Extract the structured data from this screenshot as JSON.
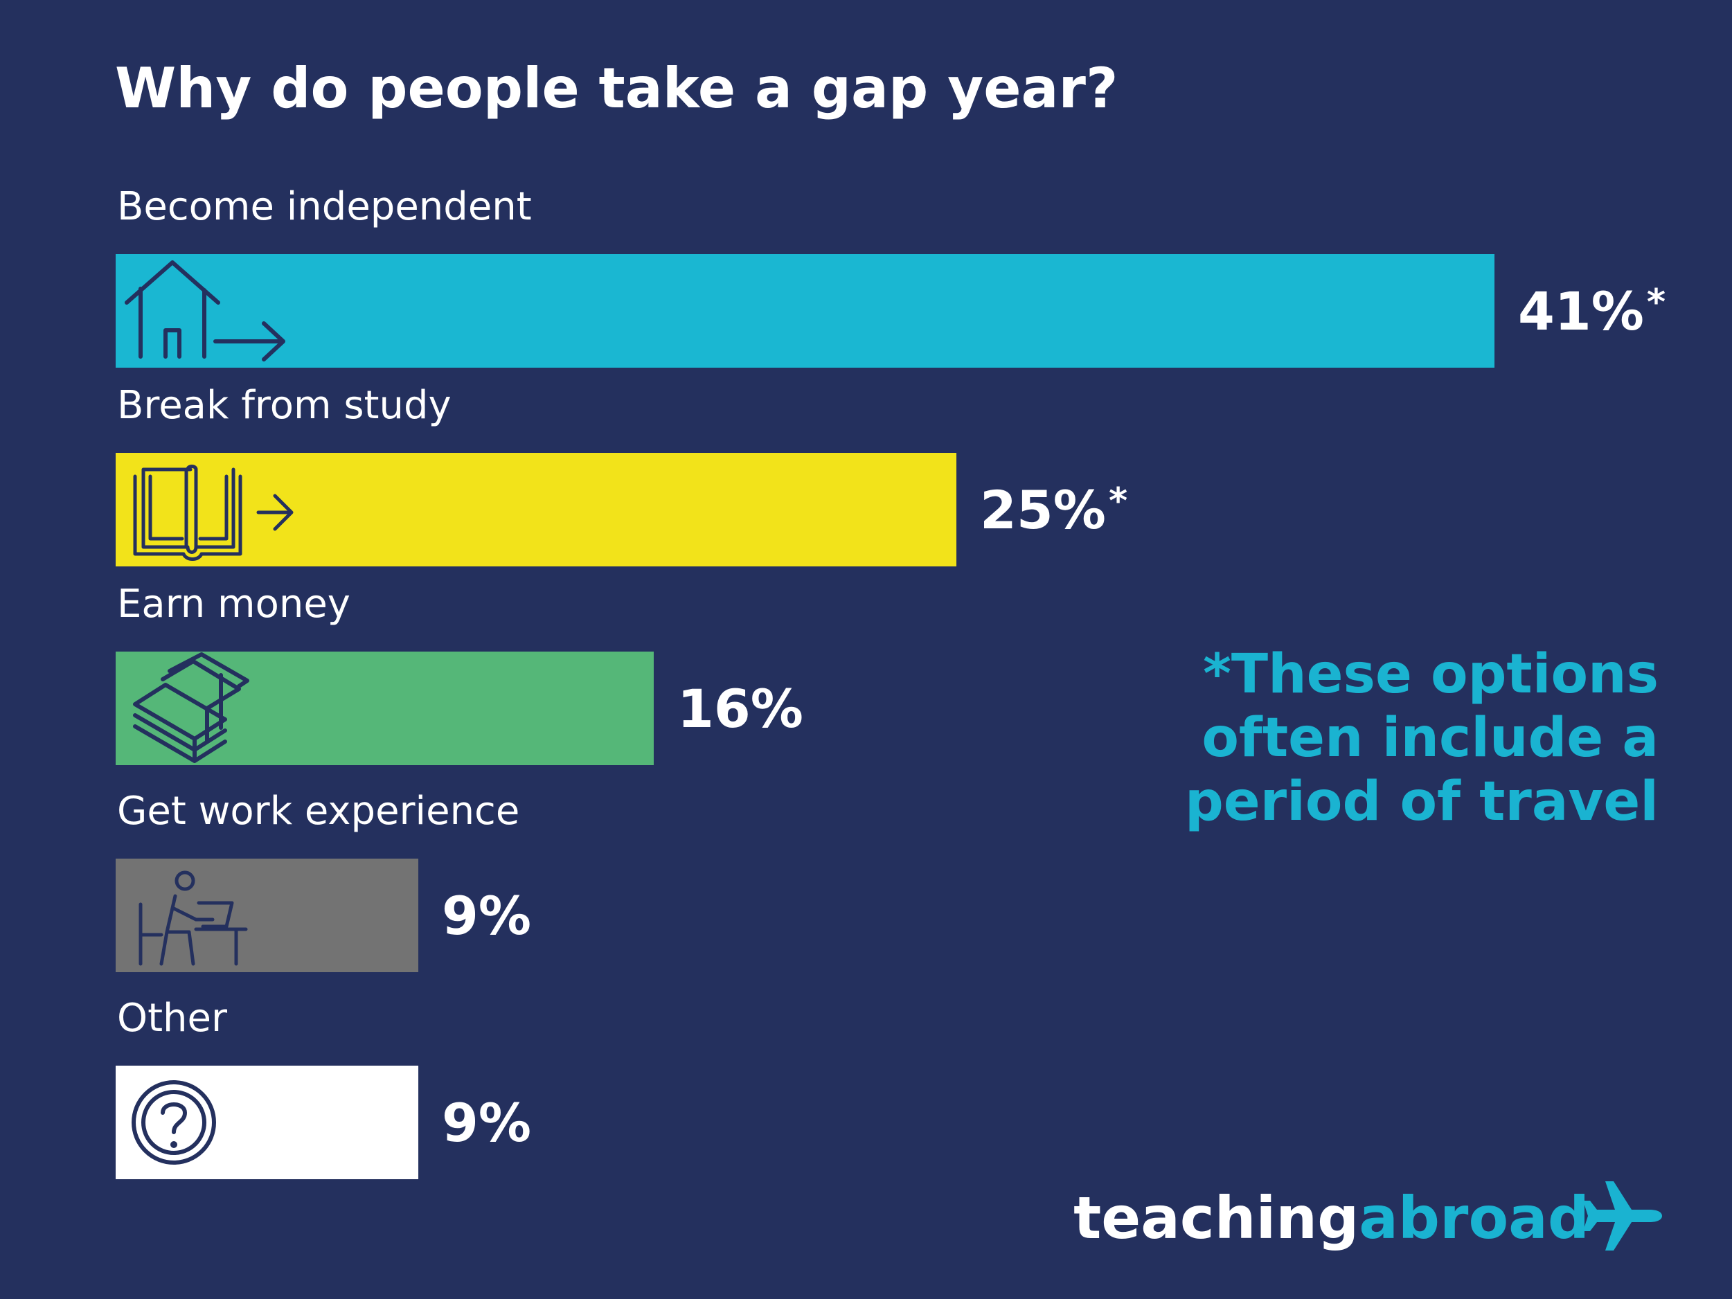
{
  "chart_data": {
    "type": "bar",
    "orientation": "horizontal",
    "title": "Why do people take a gap year?",
    "categories": [
      "Become independent",
      "Break from study",
      "Earn money",
      "Get work experience",
      "Other"
    ],
    "values": [
      41,
      25,
      16,
      9,
      9
    ],
    "value_labels": [
      "41%",
      "25%",
      "16%",
      "9%",
      "9%"
    ],
    "value_marks": [
      "*",
      "*",
      "",
      "",
      ""
    ],
    "bar_colors": [
      "#1ab7d2",
      "#f2e31a",
      "#55b778",
      "#737373",
      "#ffffff"
    ],
    "icons": [
      "house-arrow-icon",
      "book-arrow-icon",
      "money-stack-icon",
      "desk-worker-icon",
      "question-circle-icon"
    ],
    "xlim": [
      0,
      41
    ],
    "grid": false,
    "legend": "none"
  },
  "note": {
    "lines": [
      "*These options",
      "often include a",
      "period of travel"
    ],
    "color": "#1ab3d1"
  },
  "brand": {
    "part1": "teaching",
    "part2": "abroad",
    "icon": "airplane-icon",
    "accent": "#1ab3d1"
  },
  "colors": {
    "background": "#24305e",
    "icon_stroke": "#24305e",
    "text": "#ffffff"
  }
}
